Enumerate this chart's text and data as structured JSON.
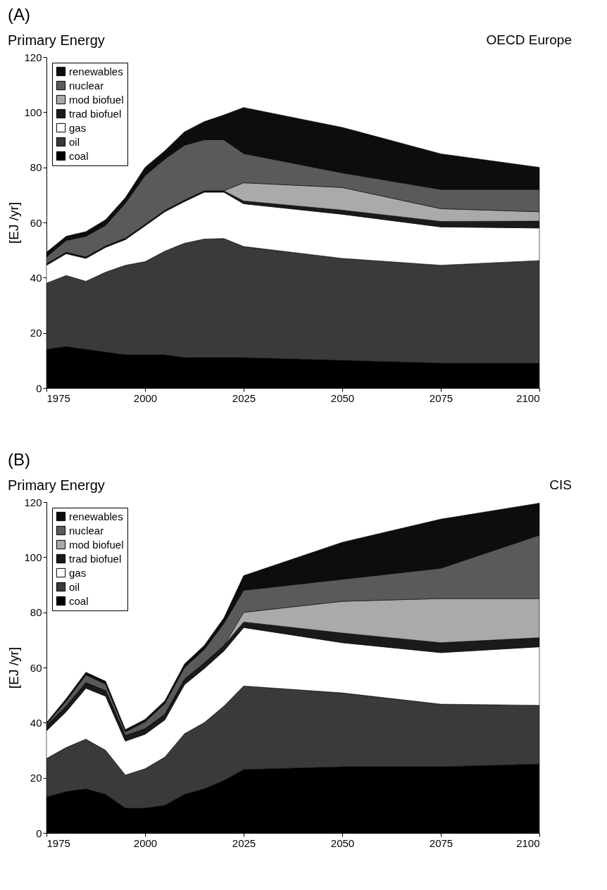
{
  "chart_data": [
    {
      "type": "area",
      "stacked": true,
      "title": "(A)",
      "subtitle": "Primary Energy",
      "annotations": [
        "OECD Europe"
      ],
      "ylabel": "[EJ /yr]",
      "legend": "top left",
      "xlim": [
        1975,
        2100
      ],
      "ylim": [
        0,
        120
      ],
      "xticks": [
        1975,
        2000,
        2025,
        2050,
        2075,
        2100
      ],
      "yticks": [
        0,
        20,
        40,
        60,
        80,
        100,
        120
      ],
      "x": [
        1975,
        1980,
        1985,
        1990,
        1995,
        2000,
        2005,
        2010,
        2015,
        2020,
        2025,
        2050,
        2075,
        2100
      ],
      "series": [
        {
          "name": "coal",
          "color": "#000000",
          "values": [
            14,
            15,
            14,
            13,
            12,
            12,
            12,
            11,
            11,
            11,
            11,
            10,
            9,
            9
          ]
        },
        {
          "name": "oil",
          "color": "#3a3a3a",
          "values": [
            24,
            25.8,
            24.7,
            29,
            32.5,
            33.8,
            37.6,
            41.5,
            43,
            43.2,
            40.3,
            37,
            35.5,
            37.2
          ]
        },
        {
          "name": "gas",
          "color": "#ffffff",
          "values": [
            6.5,
            7.9,
            8.3,
            9,
            9.3,
            13,
            14.3,
            15.1,
            17,
            16.8,
            15.5,
            16,
            13.9,
            11.8
          ]
        },
        {
          "name": "trad biofuel",
          "color": "#1a1a1a",
          "values": [
            0.5,
            0.5,
            0.5,
            0.5,
            0.5,
            0.5,
            0.5,
            0.5,
            0.5,
            0.5,
            1,
            1.5,
            2,
            2.5
          ]
        },
        {
          "name": "mod biofuel",
          "color": "#aaaaaa",
          "values": [
            0,
            0,
            0,
            0,
            0,
            0,
            0,
            0,
            0,
            0,
            6.6,
            8.2,
            4.6,
            3.4
          ]
        },
        {
          "name": "nuclear",
          "color": "#5a5a5a",
          "values": [
            2.5,
            4.3,
            7.5,
            7.5,
            12.7,
            17.7,
            18.6,
            19.9,
            18.5,
            18.5,
            10.6,
            5.3,
            7,
            8.1
          ]
        },
        {
          "name": "renewables",
          "color": "#0d0d0d",
          "values": [
            1.7,
            1.5,
            1.7,
            2,
            2,
            3,
            3,
            4.9,
            6.6,
            9,
            16.7,
            16.5,
            12.9,
            8
          ]
        }
      ]
    },
    {
      "type": "area",
      "stacked": true,
      "title": "(B)",
      "subtitle": "Primary Energy",
      "annotations": [
        "CIS"
      ],
      "ylabel": "[EJ /yr]",
      "legend": "top left",
      "xlim": [
        1975,
        2100
      ],
      "ylim": [
        0,
        120
      ],
      "xticks": [
        1975,
        2000,
        2025,
        2050,
        2075,
        2100
      ],
      "yticks": [
        0,
        20,
        40,
        60,
        80,
        100,
        120
      ],
      "x": [
        1975,
        1980,
        1985,
        1990,
        1995,
        2000,
        2005,
        2010,
        2015,
        2020,
        2025,
        2050,
        2075,
        2100
      ],
      "series": [
        {
          "name": "coal",
          "color": "#000000",
          "values": [
            13,
            15,
            16,
            14,
            9,
            9,
            10,
            14,
            16,
            19,
            23,
            24,
            24,
            25
          ]
        },
        {
          "name": "oil",
          "color": "#3a3a3a",
          "values": [
            14,
            16,
            18,
            16,
            12,
            14.3,
            17.5,
            22,
            24,
            27,
            30.3,
            26.8,
            22.7,
            21.3
          ]
        },
        {
          "name": "gas",
          "color": "#ffffff",
          "values": [
            10,
            13,
            18.5,
            19.6,
            12.3,
            12.5,
            13.5,
            17.8,
            19.6,
            20,
            21.2,
            18.2,
            18.7,
            21.2
          ]
        },
        {
          "name": "trad biofuel",
          "color": "#1a1a1a",
          "values": [
            2,
            2,
            2,
            2,
            2,
            2,
            2,
            2,
            2,
            2,
            2,
            3.5,
            3.6,
            3.3
          ]
        },
        {
          "name": "mod biofuel",
          "color": "#aaaaaa",
          "values": [
            0,
            0,
            0,
            0,
            0,
            0,
            0,
            0,
            0,
            0,
            3.5,
            11.5,
            16,
            14.2
          ]
        },
        {
          "name": "nuclear",
          "color": "#5a5a5a",
          "values": [
            0.5,
            1.8,
            2.8,
            2.4,
            1.4,
            2.5,
            3.9,
            4.2,
            4.9,
            8,
            8,
            8,
            11,
            23
          ]
        },
        {
          "name": "renewables",
          "color": "#0d0d0d",
          "values": [
            0.5,
            0.9,
            1,
            1,
            0.8,
            0.9,
            1,
            1.3,
            1.5,
            2,
            5.3,
            13.4,
            17.8,
            11.6
          ]
        }
      ]
    }
  ]
}
